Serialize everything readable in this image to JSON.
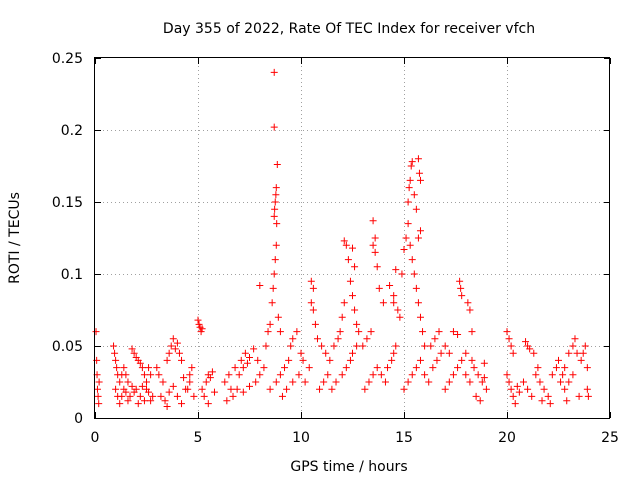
{
  "chart_data": {
    "type": "scatter",
    "title": "Day 355 of 2022, Rate Of TEC Index for receiver vfch",
    "xlabel": "GPS time / hours",
    "ylabel": "ROTI / TECUs",
    "xlim": [
      0,
      25
    ],
    "ylim": [
      0,
      0.25
    ],
    "xticks": [
      0,
      5,
      10,
      15,
      20,
      25
    ],
    "xtick_labels": [
      "0",
      "5",
      "10",
      "15",
      "20",
      "25"
    ],
    "yticks": [
      0,
      0.05,
      0.1,
      0.15,
      0.2,
      0.25
    ],
    "ytick_labels": [
      "0",
      "0.05",
      "0.1",
      "0.15",
      "0.2",
      "0.25"
    ],
    "grid": true,
    "marker": "plus",
    "color": "#ff0000",
    "series": [
      {
        "name": "ROTI",
        "points": [
          [
            0.05,
            0.06
          ],
          [
            0.08,
            0.04
          ],
          [
            0.1,
            0.03
          ],
          [
            0.12,
            0.02
          ],
          [
            0.15,
            0.015
          ],
          [
            0.18,
            0.01
          ],
          [
            0.2,
            0.025
          ],
          [
            0.9,
            0.05
          ],
          [
            0.95,
            0.045
          ],
          [
            1.0,
            0.04
          ],
          [
            1.05,
            0.035
          ],
          [
            1.1,
            0.03
          ],
          [
            1.2,
            0.025
          ],
          [
            1.3,
            0.03
          ],
          [
            1.4,
            0.035
          ],
          [
            1.5,
            0.03
          ],
          [
            1.6,
            0.025
          ],
          [
            1.0,
            0.02
          ],
          [
            1.1,
            0.015
          ],
          [
            1.2,
            0.01
          ],
          [
            1.3,
            0.015
          ],
          [
            1.4,
            0.02
          ],
          [
            1.5,
            0.018
          ],
          [
            1.6,
            0.012
          ],
          [
            1.7,
            0.015
          ],
          [
            1.8,
            0.022
          ],
          [
            1.9,
            0.018
          ],
          [
            1.8,
            0.048
          ],
          [
            1.9,
            0.045
          ],
          [
            2.0,
            0.042
          ],
          [
            2.1,
            0.04
          ],
          [
            2.2,
            0.038
          ],
          [
            2.3,
            0.035
          ],
          [
            2.4,
            0.03
          ],
          [
            2.5,
            0.025
          ],
          [
            2.6,
            0.035
          ],
          [
            2.7,
            0.03
          ],
          [
            2.0,
            0.02
          ],
          [
            2.2,
            0.015
          ],
          [
            2.4,
            0.012
          ],
          [
            2.6,
            0.018
          ],
          [
            2.8,
            0.015
          ],
          [
            2.1,
            0.01
          ],
          [
            2.3,
            0.022
          ],
          [
            2.5,
            0.02
          ],
          [
            2.7,
            0.012
          ],
          [
            3.0,
            0.035
          ],
          [
            3.1,
            0.03
          ],
          [
            3.3,
            0.025
          ],
          [
            3.5,
            0.04
          ],
          [
            3.6,
            0.045
          ],
          [
            3.7,
            0.05
          ],
          [
            3.8,
            0.055
          ],
          [
            3.9,
            0.048
          ],
          [
            4.0,
            0.052
          ],
          [
            4.1,
            0.045
          ],
          [
            4.2,
            0.04
          ],
          [
            3.2,
            0.015
          ],
          [
            3.4,
            0.012
          ],
          [
            3.6,
            0.018
          ],
          [
            3.8,
            0.022
          ],
          [
            4.0,
            0.015
          ],
          [
            4.2,
            0.01
          ],
          [
            4.4,
            0.02
          ],
          [
            4.6,
            0.025
          ],
          [
            4.8,
            0.015
          ],
          [
            3.5,
            0.008
          ],
          [
            4.3,
            0.028
          ],
          [
            4.6,
            0.03
          ],
          [
            4.7,
            0.035
          ],
          [
            4.5,
            0.02
          ],
          [
            5.0,
            0.068
          ],
          [
            5.05,
            0.065
          ],
          [
            5.1,
            0.063
          ],
          [
            5.15,
            0.06
          ],
          [
            5.2,
            0.062
          ],
          [
            5.2,
            0.02
          ],
          [
            5.3,
            0.015
          ],
          [
            5.4,
            0.025
          ],
          [
            5.5,
            0.03
          ],
          [
            5.6,
            0.028
          ],
          [
            5.7,
            0.032
          ],
          [
            5.8,
            0.018
          ],
          [
            5.5,
            0.01
          ],
          [
            6.3,
            0.025
          ],
          [
            6.5,
            0.03
          ],
          [
            6.6,
            0.02
          ],
          [
            6.8,
            0.035
          ],
          [
            7.0,
            0.03
          ],
          [
            7.1,
            0.04
          ],
          [
            7.2,
            0.035
          ],
          [
            7.3,
            0.045
          ],
          [
            7.4,
            0.038
          ],
          [
            7.5,
            0.042
          ],
          [
            6.4,
            0.012
          ],
          [
            6.7,
            0.015
          ],
          [
            6.9,
            0.02
          ],
          [
            7.2,
            0.018
          ],
          [
            7.5,
            0.022
          ],
          [
            7.8,
            0.025
          ],
          [
            8.0,
            0.03
          ],
          [
            8.2,
            0.035
          ],
          [
            7.7,
            0.048
          ],
          [
            7.9,
            0.04
          ],
          [
            8.0,
            0.092
          ],
          [
            8.3,
            0.05
          ],
          [
            8.4,
            0.06
          ],
          [
            8.5,
            0.065
          ],
          [
            8.6,
            0.08
          ],
          [
            8.65,
            0.09
          ],
          [
            8.7,
            0.1
          ],
          [
            8.75,
            0.11
          ],
          [
            8.8,
            0.12
          ],
          [
            8.82,
            0.135
          ],
          [
            8.7,
            0.14
          ],
          [
            8.72,
            0.145
          ],
          [
            8.75,
            0.15
          ],
          [
            8.78,
            0.155
          ],
          [
            8.8,
            0.16
          ],
          [
            8.85,
            0.176
          ],
          [
            8.7,
            0.202
          ],
          [
            8.7,
            0.24
          ],
          [
            8.9,
            0.07
          ],
          [
            9.0,
            0.06
          ],
          [
            8.5,
            0.02
          ],
          [
            8.8,
            0.025
          ],
          [
            9.0,
            0.03
          ],
          [
            9.2,
            0.035
          ],
          [
            9.4,
            0.04
          ],
          [
            9.5,
            0.05
          ],
          [
            9.6,
            0.055
          ],
          [
            9.8,
            0.06
          ],
          [
            10.0,
            0.045
          ],
          [
            10.1,
            0.04
          ],
          [
            9.1,
            0.015
          ],
          [
            9.3,
            0.02
          ],
          [
            9.6,
            0.025
          ],
          [
            9.9,
            0.03
          ],
          [
            10.2,
            0.025
          ],
          [
            10.4,
            0.035
          ],
          [
            10.5,
            0.08
          ],
          [
            10.6,
            0.075
          ],
          [
            10.7,
            0.065
          ],
          [
            10.8,
            0.055
          ],
          [
            10.5,
            0.095
          ],
          [
            10.6,
            0.09
          ],
          [
            11.0,
            0.05
          ],
          [
            11.2,
            0.045
          ],
          [
            11.4,
            0.04
          ],
          [
            11.6,
            0.05
          ],
          [
            11.8,
            0.055
          ],
          [
            11.9,
            0.06
          ],
          [
            12.0,
            0.07
          ],
          [
            12.1,
            0.08
          ],
          [
            10.9,
            0.02
          ],
          [
            11.1,
            0.025
          ],
          [
            11.3,
            0.03
          ],
          [
            11.5,
            0.02
          ],
          [
            11.7,
            0.025
          ],
          [
            12.0,
            0.03
          ],
          [
            12.2,
            0.035
          ],
          [
            12.4,
            0.04
          ],
          [
            12.5,
            0.045
          ],
          [
            12.7,
            0.05
          ],
          [
            12.1,
            0.123
          ],
          [
            12.2,
            0.12
          ],
          [
            12.3,
            0.11
          ],
          [
            12.5,
            0.118
          ],
          [
            12.6,
            0.105
          ],
          [
            12.4,
            0.095
          ],
          [
            12.5,
            0.085
          ],
          [
            12.6,
            0.075
          ],
          [
            12.7,
            0.065
          ],
          [
            12.8,
            0.06
          ],
          [
            13.0,
            0.05
          ],
          [
            13.2,
            0.055
          ],
          [
            13.4,
            0.06
          ],
          [
            13.5,
            0.137
          ],
          [
            13.6,
            0.125
          ],
          [
            13.5,
            0.12
          ],
          [
            13.6,
            0.115
          ],
          [
            13.7,
            0.105
          ],
          [
            13.8,
            0.09
          ],
          [
            14.0,
            0.08
          ],
          [
            13.1,
            0.02
          ],
          [
            13.3,
            0.025
          ],
          [
            13.5,
            0.03
          ],
          [
            13.7,
            0.035
          ],
          [
            13.9,
            0.03
          ],
          [
            14.1,
            0.025
          ],
          [
            14.2,
            0.035
          ],
          [
            14.4,
            0.04
          ],
          [
            14.5,
            0.045
          ],
          [
            14.6,
            0.05
          ],
          [
            14.3,
            0.092
          ],
          [
            14.5,
            0.085
          ],
          [
            14.5,
            0.08
          ],
          [
            14.7,
            0.075
          ],
          [
            14.8,
            0.07
          ],
          [
            14.6,
            0.103
          ],
          [
            14.9,
            0.1
          ],
          [
            15.0,
            0.117
          ],
          [
            15.1,
            0.125
          ],
          [
            15.2,
            0.135
          ],
          [
            15.2,
            0.15
          ],
          [
            15.25,
            0.16
          ],
          [
            15.3,
            0.165
          ],
          [
            15.35,
            0.175
          ],
          [
            15.4,
            0.178
          ],
          [
            15.5,
            0.155
          ],
          [
            15.6,
            0.145
          ],
          [
            15.7,
            0.18
          ],
          [
            15.75,
            0.17
          ],
          [
            15.8,
            0.165
          ],
          [
            15.3,
            0.12
          ],
          [
            15.4,
            0.11
          ],
          [
            15.5,
            0.1
          ],
          [
            15.6,
            0.09
          ],
          [
            15.7,
            0.08
          ],
          [
            15.8,
            0.07
          ],
          [
            15.9,
            0.06
          ],
          [
            15.7,
            0.125
          ],
          [
            15.8,
            0.13
          ],
          [
            16.0,
            0.05
          ],
          [
            15.0,
            0.02
          ],
          [
            15.2,
            0.025
          ],
          [
            15.4,
            0.03
          ],
          [
            15.6,
            0.035
          ],
          [
            15.8,
            0.04
          ],
          [
            16.0,
            0.03
          ],
          [
            16.2,
            0.025
          ],
          [
            16.4,
            0.035
          ],
          [
            16.6,
            0.04
          ],
          [
            16.8,
            0.045
          ],
          [
            16.3,
            0.05
          ],
          [
            16.5,
            0.055
          ],
          [
            16.7,
            0.06
          ],
          [
            17.0,
            0.05
          ],
          [
            17.2,
            0.045
          ],
          [
            17.4,
            0.06
          ],
          [
            17.6,
            0.058
          ],
          [
            17.7,
            0.095
          ],
          [
            17.75,
            0.09
          ],
          [
            17.8,
            0.085
          ],
          [
            17.0,
            0.02
          ],
          [
            17.2,
            0.025
          ],
          [
            17.4,
            0.03
          ],
          [
            17.6,
            0.035
          ],
          [
            17.8,
            0.04
          ],
          [
            18.0,
            0.03
          ],
          [
            18.2,
            0.025
          ],
          [
            18.1,
            0.08
          ],
          [
            18.2,
            0.075
          ],
          [
            18.3,
            0.06
          ],
          [
            18.0,
            0.045
          ],
          [
            18.3,
            0.04
          ],
          [
            18.4,
            0.035
          ],
          [
            18.6,
            0.03
          ],
          [
            18.8,
            0.025
          ],
          [
            18.9,
            0.038
          ],
          [
            19.0,
            0.02
          ],
          [
            18.5,
            0.015
          ],
          [
            18.7,
            0.012
          ],
          [
            18.9,
            0.028
          ],
          [
            20.0,
            0.06
          ],
          [
            20.1,
            0.055
          ],
          [
            20.2,
            0.05
          ],
          [
            20.3,
            0.045
          ],
          [
            20.0,
            0.03
          ],
          [
            20.1,
            0.025
          ],
          [
            20.2,
            0.02
          ],
          [
            20.3,
            0.015
          ],
          [
            20.4,
            0.01
          ],
          [
            20.5,
            0.022
          ],
          [
            20.6,
            0.018
          ],
          [
            20.8,
            0.025
          ],
          [
            21.0,
            0.02
          ],
          [
            21.2,
            0.015
          ],
          [
            21.4,
            0.03
          ],
          [
            21.5,
            0.035
          ],
          [
            20.9,
            0.053
          ],
          [
            21.0,
            0.05
          ],
          [
            21.1,
            0.048
          ],
          [
            21.3,
            0.045
          ],
          [
            21.6,
            0.025
          ],
          [
            21.8,
            0.02
          ],
          [
            22.0,
            0.015
          ],
          [
            22.2,
            0.03
          ],
          [
            22.4,
            0.035
          ],
          [
            22.6,
            0.025
          ],
          [
            22.7,
            0.03
          ],
          [
            22.8,
            0.02
          ],
          [
            23.0,
            0.025
          ],
          [
            23.2,
            0.03
          ],
          [
            22.5,
            0.04
          ],
          [
            22.8,
            0.035
          ],
          [
            23.0,
            0.045
          ],
          [
            23.2,
            0.05
          ],
          [
            23.3,
            0.055
          ],
          [
            23.4,
            0.045
          ],
          [
            23.6,
            0.04
          ],
          [
            23.7,
            0.045
          ],
          [
            23.8,
            0.05
          ],
          [
            23.9,
            0.035
          ],
          [
            21.7,
            0.012
          ],
          [
            22.1,
            0.01
          ],
          [
            22.9,
            0.012
          ],
          [
            23.5,
            0.015
          ],
          [
            23.9,
            0.02
          ],
          [
            23.95,
            0.015
          ]
        ]
      }
    ]
  }
}
